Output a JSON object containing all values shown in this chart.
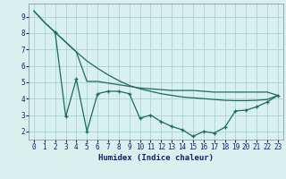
{
  "title": "",
  "xlabel": "Humidex (Indice chaleur)",
  "bg_color": "#d8f0ee",
  "grid_color": "#b0d8d4",
  "line_color": "#1a6b5a",
  "xlim": [
    -0.5,
    23.5
  ],
  "ylim": [
    1.5,
    9.8
  ],
  "xticks": [
    0,
    1,
    2,
    3,
    4,
    5,
    6,
    7,
    8,
    9,
    10,
    11,
    12,
    13,
    14,
    15,
    16,
    17,
    18,
    19,
    20,
    21,
    22,
    23
  ],
  "yticks": [
    2,
    3,
    4,
    5,
    6,
    7,
    8,
    9
  ],
  "line1_x": [
    0,
    1,
    2,
    3,
    4,
    5,
    6,
    7,
    8,
    9,
    10,
    11,
    12,
    13,
    14,
    15,
    16,
    17,
    18,
    19,
    20,
    21,
    22,
    23
  ],
  "line1_y": [
    9.35,
    8.65,
    8.05,
    7.45,
    6.85,
    6.3,
    5.85,
    5.45,
    5.1,
    4.8,
    4.6,
    4.45,
    4.3,
    4.2,
    4.1,
    4.05,
    4.0,
    3.95,
    3.9,
    3.88,
    3.88,
    3.9,
    3.95,
    4.2
  ],
  "line2_x": [
    0,
    1,
    2,
    3,
    4,
    5,
    6,
    7,
    8,
    9,
    10,
    11,
    12,
    13,
    14,
    15,
    16,
    17,
    18,
    19,
    20,
    21,
    22,
    23
  ],
  "line2_y": [
    9.35,
    8.65,
    8.05,
    7.45,
    6.85,
    5.05,
    5.05,
    4.95,
    4.85,
    4.75,
    4.65,
    4.6,
    4.55,
    4.5,
    4.5,
    4.5,
    4.45,
    4.4,
    4.4,
    4.4,
    4.4,
    4.4,
    4.4,
    4.2
  ],
  "line3_x": [
    2,
    3,
    4,
    5,
    6,
    7,
    8,
    9,
    10,
    11,
    12,
    13,
    14,
    15,
    16,
    17,
    18,
    19,
    20,
    21,
    22,
    23
  ],
  "line3_y": [
    8.05,
    2.9,
    5.2,
    2.0,
    4.3,
    4.45,
    4.45,
    4.3,
    2.8,
    3.0,
    2.6,
    2.3,
    2.1,
    1.7,
    2.0,
    1.9,
    2.25,
    3.25,
    3.3,
    3.5,
    3.8,
    4.2
  ]
}
